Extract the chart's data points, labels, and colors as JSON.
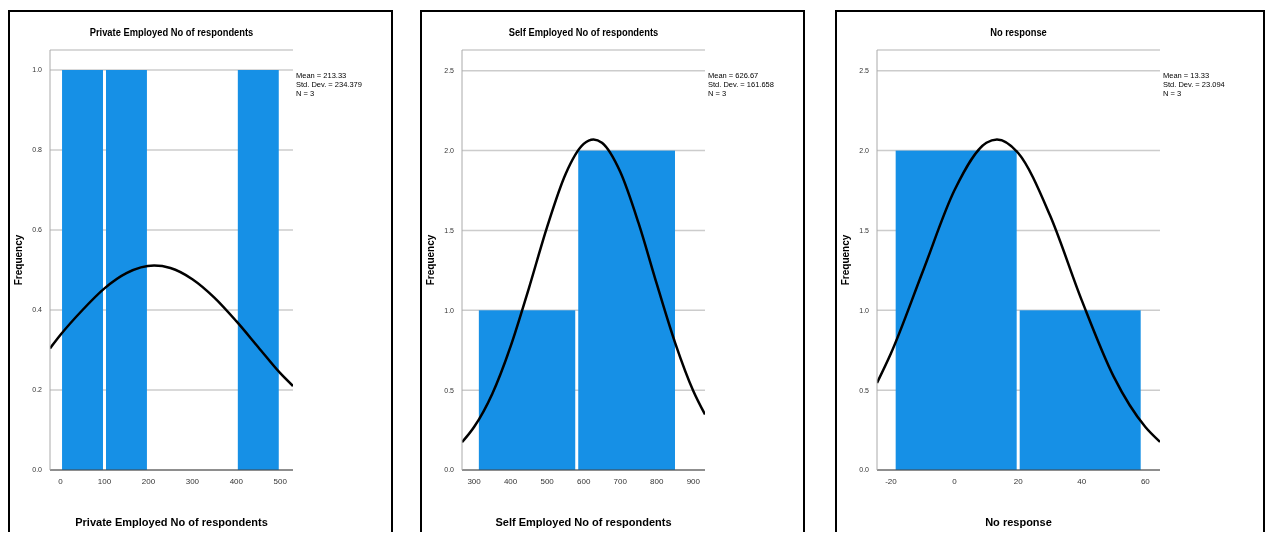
{
  "chart_data": [
    {
      "type": "histogram",
      "title": "Private  Employed No of respondents",
      "xlabel": "Private  Employed No of respondents",
      "ylabel": "Frequency",
      "bins": [
        0,
        100,
        200,
        300,
        400,
        500
      ],
      "values": [
        1,
        1,
        0,
        0,
        1
      ],
      "color": "#1690e6",
      "series": [
        {
          "type": "line",
          "color": "#000000",
          "x": [
            -24,
            0,
            50,
            100,
            150,
            213,
            250,
            300,
            350,
            400,
            450,
            500,
            529
          ],
          "values": [
            0.304,
            0.338,
            0.4,
            0.454,
            0.492,
            0.511,
            0.505,
            0.477,
            0.431,
            0.372,
            0.307,
            0.242,
            0.21
          ]
        }
      ],
      "xlim": [
        -24,
        529
      ],
      "xticks": [
        0,
        100,
        200,
        300,
        400,
        500
      ],
      "ylim": [
        0,
        1.05
      ],
      "yticks": [
        {
          "value": 0,
          "label": "0.0"
        },
        {
          "value": 0.2,
          "label": "0.2"
        },
        {
          "value": 0.4,
          "label": "0.4"
        },
        {
          "value": 0.6,
          "label": "0.6"
        },
        {
          "value": 0.8,
          "label": "0.8"
        },
        {
          "value": 1,
          "label": "1.0"
        }
      ],
      "grid": "y",
      "annotations": [
        "Mean = 213.33",
        "Std. Dev. = 234.379",
        "N = 3"
      ]
    },
    {
      "type": "histogram",
      "title": "Self  Employed No of respondents",
      "xlabel": "Self  Employed No of respondents",
      "ylabel": "Frequency",
      "bins": [
        309,
        581,
        854
      ],
      "values": [
        1,
        2
      ],
      "color": "#1690e6",
      "series": [
        {
          "type": "line",
          "color": "#000000",
          "x": [
            267,
            300,
            350,
            400,
            450,
            500,
            550,
            600,
            627,
            650,
            700,
            750,
            800,
            850,
            900,
            932
          ],
          "values": [
            0.174,
            0.269,
            0.478,
            0.774,
            1.138,
            1.523,
            1.851,
            2.042,
            2.07,
            2.049,
            1.867,
            1.547,
            1.165,
            0.798,
            0.495,
            0.348
          ]
        }
      ],
      "xlim": [
        267,
        932
      ],
      "xticks": [
        300,
        400,
        500,
        600,
        700,
        800,
        900
      ],
      "ylim": [
        0,
        2.63
      ],
      "yticks": [
        {
          "value": 0,
          "label": "0.0"
        },
        {
          "value": 0.5,
          "label": "0.5"
        },
        {
          "value": 1,
          "label": "1.0"
        },
        {
          "value": 1.5,
          "label": "1.5"
        },
        {
          "value": 2,
          "label": "2.0"
        },
        {
          "value": 2.5,
          "label": "2.5"
        }
      ],
      "grid": "y",
      "annotations": [
        "Mean = 626.67",
        "Std. Dev. = 161.658",
        "N = 3"
      ]
    },
    {
      "type": "histogram",
      "title": "No response",
      "xlabel": "No response",
      "ylabel": "Frequency",
      "bins": [
        -19,
        20,
        59
      ],
      "values": [
        2,
        1
      ],
      "color": "#1690e6",
      "series": [
        {
          "type": "line",
          "color": "#000000",
          "x": [
            -24.4,
            -20,
            -10,
            0,
            10,
            13.33,
            20,
            30,
            40,
            50,
            60,
            64.6
          ],
          "values": [
            0.545,
            0.731,
            1.243,
            1.753,
            2.049,
            2.07,
            1.985,
            1.595,
            1.062,
            0.586,
            0.269,
            0.176
          ]
        }
      ],
      "xlim": [
        -24.4,
        64.6
      ],
      "xticks": [
        -20,
        0,
        20,
        40,
        60
      ],
      "ylim": [
        0,
        2.63
      ],
      "yticks": [
        {
          "value": 0,
          "label": "0.0"
        },
        {
          "value": 0.5,
          "label": "0.5"
        },
        {
          "value": 1,
          "label": "1.0"
        },
        {
          "value": 1.5,
          "label": "1.5"
        },
        {
          "value": 2,
          "label": "2.0"
        },
        {
          "value": 2.5,
          "label": "2.5"
        }
      ],
      "grid": "y",
      "annotations": [
        "Mean = 13.33",
        "Std. Dev. = 23.094",
        "N = 3"
      ]
    }
  ]
}
